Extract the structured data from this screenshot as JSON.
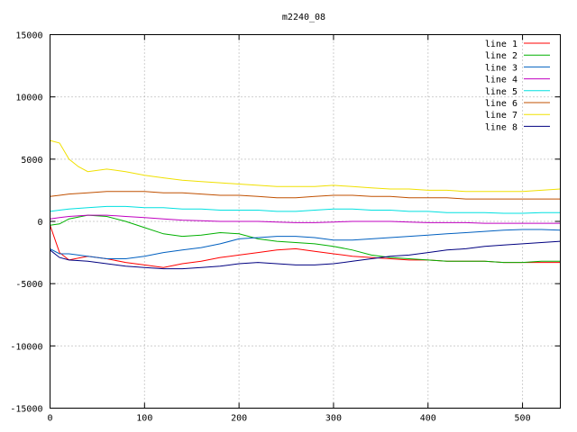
{
  "chart_data": {
    "type": "line",
    "title": "m2240_08",
    "xlabel": "",
    "ylabel": "",
    "xlim": [
      0,
      540
    ],
    "ylim": [
      -15000,
      15000
    ],
    "grid": true,
    "legend_position": "top-right",
    "x_ticks": [
      0,
      100,
      200,
      300,
      400,
      500
    ],
    "y_ticks": [
      -15000,
      -10000,
      -5000,
      0,
      5000,
      10000,
      15000
    ],
    "x_tick_labels": [
      "0",
      "100",
      "200",
      "300",
      "400",
      "500"
    ],
    "y_tick_labels": [
      "-15000",
      "-10000",
      "-5000",
      "0",
      "5000",
      "10000",
      "15000"
    ],
    "series": [
      {
        "name": "line 1",
        "color": "#ff0000",
        "points": [
          [
            0,
            -300
          ],
          [
            10,
            -2500
          ],
          [
            20,
            -3100
          ],
          [
            40,
            -2800
          ],
          [
            60,
            -3000
          ],
          [
            80,
            -3300
          ],
          [
            100,
            -3500
          ],
          [
            120,
            -3700
          ],
          [
            140,
            -3400
          ],
          [
            160,
            -3200
          ],
          [
            180,
            -2900
          ],
          [
            200,
            -2700
          ],
          [
            220,
            -2500
          ],
          [
            240,
            -2300
          ],
          [
            260,
            -2200
          ],
          [
            280,
            -2400
          ],
          [
            300,
            -2600
          ],
          [
            320,
            -2800
          ],
          [
            340,
            -2900
          ],
          [
            360,
            -3000
          ],
          [
            380,
            -3100
          ],
          [
            400,
            -3100
          ],
          [
            420,
            -3200
          ],
          [
            440,
            -3200
          ],
          [
            460,
            -3200
          ],
          [
            480,
            -3300
          ],
          [
            500,
            -3300
          ],
          [
            520,
            -3300
          ],
          [
            540,
            -3300
          ]
        ]
      },
      {
        "name": "line 2",
        "color": "#00b000",
        "points": [
          [
            0,
            -300
          ],
          [
            10,
            -200
          ],
          [
            20,
            200
          ],
          [
            40,
            500
          ],
          [
            60,
            400
          ],
          [
            80,
            0
          ],
          [
            100,
            -500
          ],
          [
            120,
            -1000
          ],
          [
            140,
            -1200
          ],
          [
            160,
            -1100
          ],
          [
            180,
            -900
          ],
          [
            200,
            -1000
          ],
          [
            220,
            -1400
          ],
          [
            240,
            -1600
          ],
          [
            260,
            -1700
          ],
          [
            280,
            -1800
          ],
          [
            300,
            -2000
          ],
          [
            320,
            -2300
          ],
          [
            340,
            -2700
          ],
          [
            360,
            -2900
          ],
          [
            380,
            -3000
          ],
          [
            400,
            -3100
          ],
          [
            420,
            -3200
          ],
          [
            440,
            -3200
          ],
          [
            460,
            -3200
          ],
          [
            480,
            -3300
          ],
          [
            500,
            -3300
          ],
          [
            520,
            -3200
          ],
          [
            540,
            -3200
          ]
        ]
      },
      {
        "name": "line 3",
        "color": "#0060c0",
        "points": [
          [
            0,
            -2200
          ],
          [
            10,
            -2600
          ],
          [
            20,
            -2600
          ],
          [
            40,
            -2800
          ],
          [
            60,
            -3000
          ],
          [
            80,
            -3000
          ],
          [
            100,
            -2800
          ],
          [
            120,
            -2500
          ],
          [
            140,
            -2300
          ],
          [
            160,
            -2100
          ],
          [
            180,
            -1800
          ],
          [
            200,
            -1400
          ],
          [
            220,
            -1300
          ],
          [
            240,
            -1200
          ],
          [
            260,
            -1200
          ],
          [
            280,
            -1300
          ],
          [
            300,
            -1500
          ],
          [
            320,
            -1500
          ],
          [
            340,
            -1400
          ],
          [
            360,
            -1300
          ],
          [
            380,
            -1200
          ],
          [
            400,
            -1100
          ],
          [
            420,
            -1000
          ],
          [
            440,
            -900
          ],
          [
            460,
            -800
          ],
          [
            480,
            -700
          ],
          [
            500,
            -650
          ],
          [
            520,
            -650
          ],
          [
            540,
            -700
          ]
        ]
      },
      {
        "name": "line 4",
        "color": "#c000c0",
        "points": [
          [
            0,
            200
          ],
          [
            10,
            300
          ],
          [
            20,
            400
          ],
          [
            40,
            500
          ],
          [
            60,
            500
          ],
          [
            80,
            400
          ],
          [
            100,
            300
          ],
          [
            120,
            200
          ],
          [
            140,
            100
          ],
          [
            160,
            50
          ],
          [
            180,
            0
          ],
          [
            200,
            0
          ],
          [
            220,
            0
          ],
          [
            240,
            -50
          ],
          [
            260,
            -100
          ],
          [
            280,
            -100
          ],
          [
            300,
            -50
          ],
          [
            320,
            0
          ],
          [
            340,
            0
          ],
          [
            360,
            0
          ],
          [
            380,
            -50
          ],
          [
            400,
            -100
          ],
          [
            420,
            -100
          ],
          [
            440,
            -100
          ],
          [
            460,
            -150
          ],
          [
            480,
            -150
          ],
          [
            500,
            -150
          ],
          [
            520,
            -150
          ],
          [
            540,
            -150
          ]
        ]
      },
      {
        "name": "line 5",
        "color": "#00e0e0",
        "points": [
          [
            0,
            800
          ],
          [
            10,
            900
          ],
          [
            20,
            1000
          ],
          [
            40,
            1100
          ],
          [
            60,
            1200
          ],
          [
            80,
            1200
          ],
          [
            100,
            1100
          ],
          [
            120,
            1100
          ],
          [
            140,
            1000
          ],
          [
            160,
            1000
          ],
          [
            180,
            900
          ],
          [
            200,
            900
          ],
          [
            220,
            900
          ],
          [
            240,
            800
          ],
          [
            260,
            800
          ],
          [
            280,
            900
          ],
          [
            300,
            1000
          ],
          [
            320,
            1000
          ],
          [
            340,
            900
          ],
          [
            360,
            900
          ],
          [
            380,
            800
          ],
          [
            400,
            800
          ],
          [
            420,
            700
          ],
          [
            440,
            700
          ],
          [
            460,
            700
          ],
          [
            480,
            650
          ],
          [
            500,
            650
          ],
          [
            520,
            700
          ],
          [
            540,
            700
          ]
        ]
      },
      {
        "name": "line 6",
        "color": "#c05000",
        "points": [
          [
            0,
            2000
          ],
          [
            10,
            2100
          ],
          [
            20,
            2200
          ],
          [
            40,
            2300
          ],
          [
            60,
            2400
          ],
          [
            80,
            2400
          ],
          [
            100,
            2400
          ],
          [
            120,
            2300
          ],
          [
            140,
            2300
          ],
          [
            160,
            2200
          ],
          [
            180,
            2100
          ],
          [
            200,
            2100
          ],
          [
            220,
            2000
          ],
          [
            240,
            1900
          ],
          [
            260,
            1900
          ],
          [
            280,
            2000
          ],
          [
            300,
            2100
          ],
          [
            320,
            2100
          ],
          [
            340,
            2000
          ],
          [
            360,
            2000
          ],
          [
            380,
            1900
          ],
          [
            400,
            1900
          ],
          [
            420,
            1900
          ],
          [
            440,
            1800
          ],
          [
            460,
            1800
          ],
          [
            480,
            1800
          ],
          [
            500,
            1800
          ],
          [
            520,
            1800
          ],
          [
            540,
            1800
          ]
        ]
      },
      {
        "name": "line 7",
        "color": "#f0e000",
        "points": [
          [
            0,
            6500
          ],
          [
            10,
            6300
          ],
          [
            20,
            5000
          ],
          [
            30,
            4400
          ],
          [
            40,
            4000
          ],
          [
            60,
            4200
          ],
          [
            80,
            4000
          ],
          [
            100,
            3700
          ],
          [
            120,
            3500
          ],
          [
            140,
            3300
          ],
          [
            160,
            3200
          ],
          [
            180,
            3100
          ],
          [
            200,
            3000
          ],
          [
            220,
            2900
          ],
          [
            240,
            2800
          ],
          [
            260,
            2800
          ],
          [
            280,
            2800
          ],
          [
            300,
            2900
          ],
          [
            320,
            2800
          ],
          [
            340,
            2700
          ],
          [
            360,
            2600
          ],
          [
            380,
            2600
          ],
          [
            400,
            2500
          ],
          [
            420,
            2500
          ],
          [
            440,
            2400
          ],
          [
            460,
            2400
          ],
          [
            480,
            2400
          ],
          [
            500,
            2400
          ],
          [
            520,
            2500
          ],
          [
            540,
            2600
          ]
        ]
      },
      {
        "name": "line 8",
        "color": "#000080",
        "points": [
          [
            0,
            -2300
          ],
          [
            10,
            -2900
          ],
          [
            20,
            -3100
          ],
          [
            40,
            -3200
          ],
          [
            60,
            -3400
          ],
          [
            80,
            -3600
          ],
          [
            100,
            -3700
          ],
          [
            120,
            -3800
          ],
          [
            140,
            -3800
          ],
          [
            160,
            -3700
          ],
          [
            180,
            -3600
          ],
          [
            200,
            -3400
          ],
          [
            220,
            -3300
          ],
          [
            240,
            -3400
          ],
          [
            260,
            -3500
          ],
          [
            280,
            -3500
          ],
          [
            300,
            -3400
          ],
          [
            320,
            -3200
          ],
          [
            340,
            -3000
          ],
          [
            360,
            -2800
          ],
          [
            380,
            -2700
          ],
          [
            400,
            -2500
          ],
          [
            420,
            -2300
          ],
          [
            440,
            -2200
          ],
          [
            460,
            -2000
          ],
          [
            480,
            -1900
          ],
          [
            500,
            -1800
          ],
          [
            520,
            -1700
          ],
          [
            540,
            -1600
          ]
        ]
      }
    ]
  }
}
